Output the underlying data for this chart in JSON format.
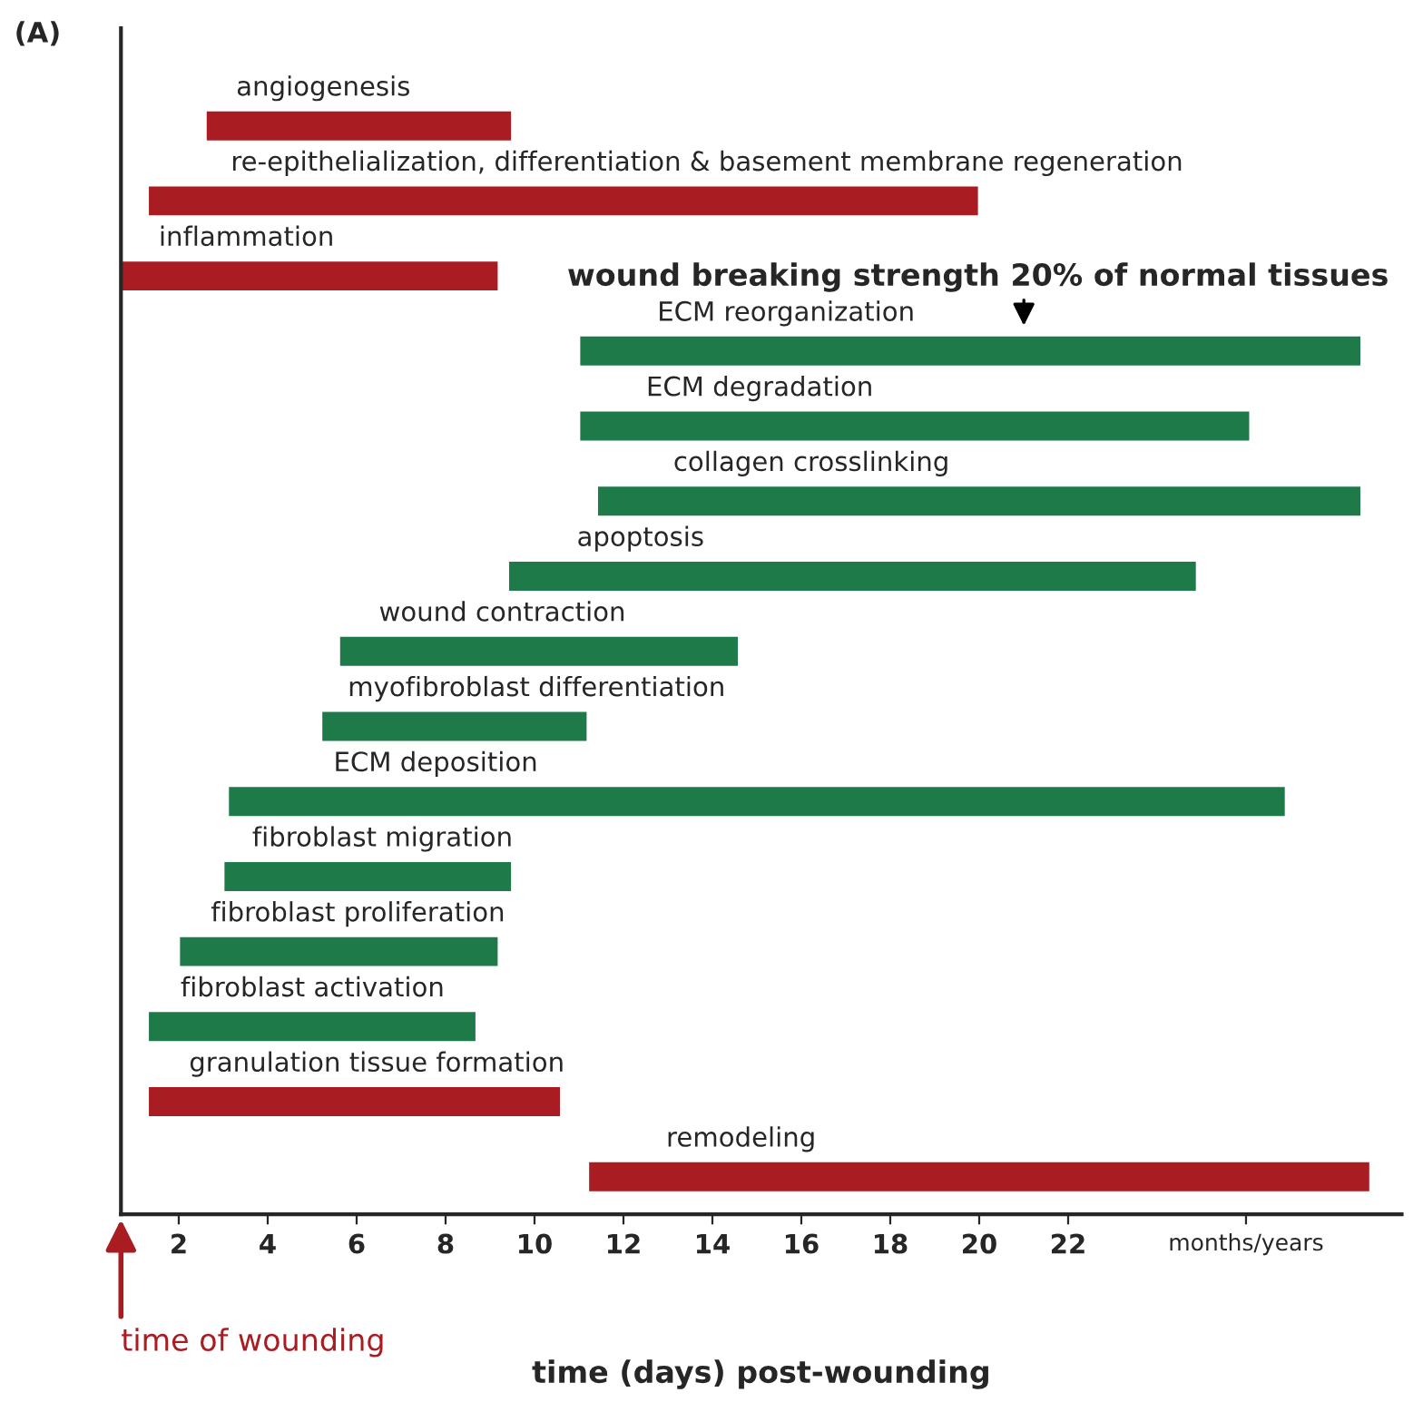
{
  "chart_data": {
    "type": "bar",
    "orientation": "horizontal",
    "xlabel": "time (days) post-wounding",
    "categories": [
      "angiogenesis",
      "re-epithelialization, differentiation & basement membrane regeneration",
      "inflammation",
      "ECM reorganization",
      "ECM degradation",
      "collagen crosslinking",
      "apoptosis",
      "wound contraction",
      "myofibroblast differentiation",
      "ECM deposition",
      "fibroblast migration",
      "fibroblast proliferation",
      "fibroblast activation",
      "granulation tissue formation",
      "remodeling"
    ],
    "base": [
      2.6,
      1.3,
      0.7,
      11.0,
      11.0,
      11.4,
      9.4,
      5.6,
      5.2,
      3.1,
      3.0,
      2.0,
      1.3,
      1.3,
      11.2
    ],
    "values": [
      6.9,
      18.7,
      8.5,
      17.6,
      15.1,
      17.2,
      15.5,
      9.0,
      6.0,
      23.8,
      6.5,
      7.2,
      7.4,
      9.3,
      17.6
    ],
    "colors": [
      "#a81c22",
      "#a81c22",
      "#a81c22",
      "#1f7a4a",
      "#1f7a4a",
      "#1f7a4a",
      "#1f7a4a",
      "#1f7a4a",
      "#1f7a4a",
      "#1f7a4a",
      "#1f7a4a",
      "#1f7a4a",
      "#1f7a4a",
      "#a81c22",
      "#a81c22"
    ],
    "xlim": [
      0.7,
      29.5
    ],
    "xticks": [
      2,
      4,
      6,
      8,
      10,
      12,
      14,
      16,
      18,
      20,
      22,
      {
        "value": 26,
        "label": "months/years"
      }
    ],
    "annotations": [
      "(A)",
      "wound breaking strength 20% of normal tissues",
      "time of wounding"
    ]
  }
}
